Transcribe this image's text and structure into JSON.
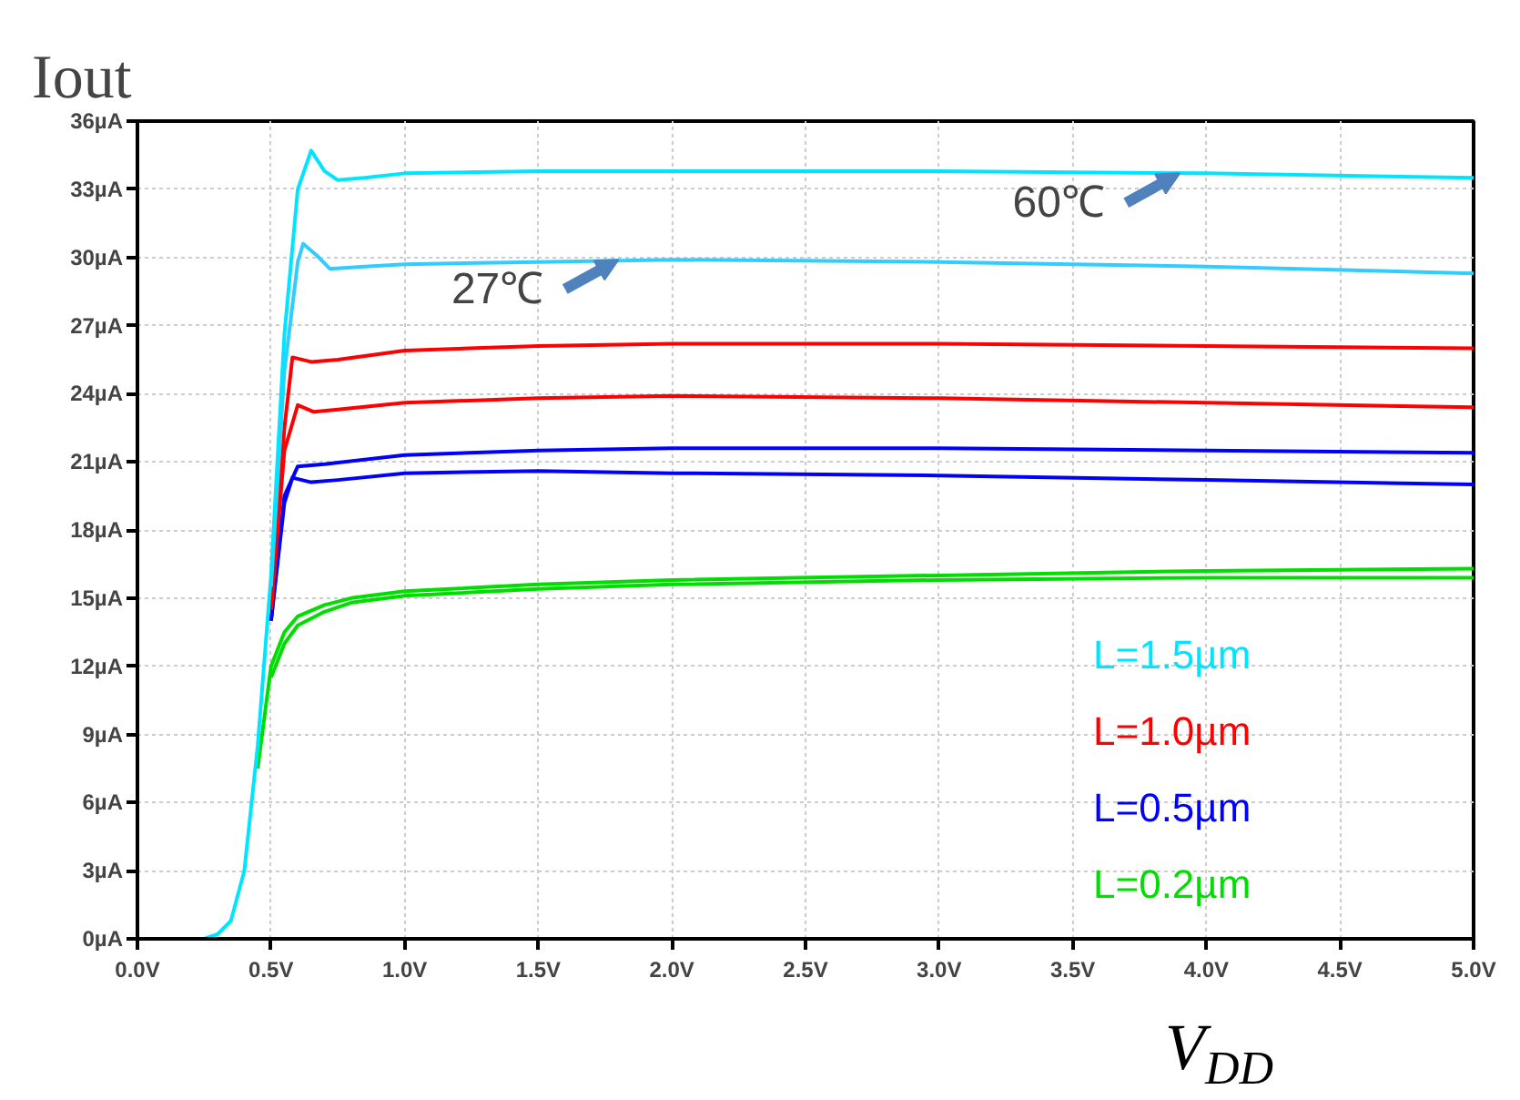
{
  "chart_data": {
    "type": "line",
    "xlabel": "V$_{DD}$",
    "ylabel": "Iout",
    "xlim": [
      0,
      5
    ],
    "ylim": [
      0,
      36
    ],
    "xticks": [
      {
        "value": 0,
        "label": "0.0V"
      },
      {
        "value": 0.5,
        "label": "0.5V"
      },
      {
        "value": 1,
        "label": "1.0V"
      },
      {
        "value": 1.5,
        "label": "1.5V"
      },
      {
        "value": 2,
        "label": "2.0V"
      },
      {
        "value": 2.5,
        "label": "2.5V"
      },
      {
        "value": 3,
        "label": "3.0V"
      },
      {
        "value": 3.5,
        "label": "3.5V"
      },
      {
        "value": 4,
        "label": "4.0V"
      },
      {
        "value": 4.5,
        "label": "4.5V"
      },
      {
        "value": 5,
        "label": "5.0V"
      }
    ],
    "yticks": [
      {
        "value": 0,
        "label": "0µA"
      },
      {
        "value": 3,
        "label": "3µA"
      },
      {
        "value": 6,
        "label": "6µA"
      },
      {
        "value": 9,
        "label": "9µA"
      },
      {
        "value": 12,
        "label": "12µA"
      },
      {
        "value": 15,
        "label": "15µA"
      },
      {
        "value": 18,
        "label": "18µA"
      },
      {
        "value": 21,
        "label": "21µA"
      },
      {
        "value": 24,
        "label": "24µA"
      },
      {
        "value": 27,
        "label": "27µA"
      },
      {
        "value": 30,
        "label": "30µA"
      },
      {
        "value": 33,
        "label": "33µA"
      },
      {
        "value": 36,
        "label": "36µA"
      }
    ],
    "grid": true,
    "legend": "bottom right",
    "marker": "none",
    "line_style": "solid",
    "series": [
      {
        "name": "L=1.5µm",
        "color": "#00e5ff",
        "x": [
          0,
          0.25,
          0.3,
          0.35,
          0.4,
          0.45,
          0.5,
          0.55,
          0.6,
          0.65,
          0.7,
          0.75,
          0.85,
          1.0,
          1.5,
          2.0,
          3.0,
          4.0,
          5.0
        ],
        "values": [
          0,
          0,
          0.2,
          0.8,
          3,
          8.5,
          16,
          26.6,
          33,
          34.7,
          33.8,
          33.4,
          33.5,
          33.7,
          33.8,
          33.8,
          33.8,
          33.7,
          33.5
        ]
      },
      {
        "color": "#33ccff",
        "x": [
          0.5,
          0.55,
          0.6,
          0.62,
          0.67,
          0.72,
          0.85,
          1.0,
          1.5,
          2.0,
          3.0,
          3.5,
          4.0,
          5.0
        ],
        "values": [
          15.5,
          25,
          29.8,
          30.6,
          30.1,
          29.5,
          29.6,
          29.7,
          29.8,
          29.9,
          29.8,
          29.7,
          29.6,
          29.3
        ]
      },
      {
        "name": "L=1.0µm",
        "color": "#ff0000",
        "x": [
          0.5,
          0.55,
          0.58,
          0.65,
          0.75,
          1.0,
          1.5,
          2.0,
          3.0,
          4.0,
          5.0
        ],
        "values": [
          14.5,
          22.5,
          25.6,
          25.4,
          25.5,
          25.9,
          26.1,
          26.2,
          26.2,
          26.1,
          26.0
        ]
      },
      {
        "color": "#ff0000",
        "x": [
          0.5,
          0.55,
          0.6,
          0.66,
          0.75,
          1.0,
          1.5,
          2.0,
          3.0,
          4.0,
          5.0
        ],
        "values": [
          14.5,
          21.5,
          23.5,
          23.2,
          23.3,
          23.6,
          23.8,
          23.9,
          23.8,
          23.6,
          23.4
        ]
      },
      {
        "name": "L=0.5µm",
        "color": "#0000ff",
        "x": [
          0.5,
          0.55,
          0.6,
          0.7,
          1.0,
          1.5,
          2.0,
          3.0,
          4.0,
          5.0
        ],
        "values": [
          14,
          19.5,
          20.8,
          20.9,
          21.3,
          21.5,
          21.6,
          21.6,
          21.5,
          21.4
        ]
      },
      {
        "color": "#0000ff",
        "x": [
          0.5,
          0.55,
          0.58,
          0.65,
          0.75,
          1.0,
          1.5,
          2.0,
          3.0,
          4.0,
          5.0
        ],
        "values": [
          14,
          19.2,
          20.3,
          20.1,
          20.2,
          20.5,
          20.6,
          20.5,
          20.4,
          20.2,
          20.0
        ]
      },
      {
        "name": "L=0.2µm",
        "color": "#00dd00",
        "x": [
          0.45,
          0.5,
          0.55,
          0.6,
          0.7,
          0.8,
          1.0,
          1.5,
          2.0,
          3.0,
          4.0,
          5.0
        ],
        "values": [
          7.5,
          12,
          13.5,
          14.2,
          14.7,
          15.0,
          15.3,
          15.6,
          15.8,
          16.0,
          16.2,
          16.3
        ]
      },
      {
        "color": "#00dd00",
        "x": [
          0.5,
          0.55,
          0.6,
          0.7,
          0.8,
          1.0,
          1.5,
          2.0,
          3.0,
          4.0,
          5.0
        ],
        "values": [
          11.5,
          13.0,
          13.8,
          14.4,
          14.8,
          15.1,
          15.4,
          15.6,
          15.8,
          15.9,
          15.9
        ]
      }
    ],
    "annotations": [
      {
        "text": "27℃",
        "x": 1.8,
        "y": 29.9
      },
      {
        "text": "60℃",
        "x": 3.9,
        "y": 33.7
      }
    ]
  }
}
